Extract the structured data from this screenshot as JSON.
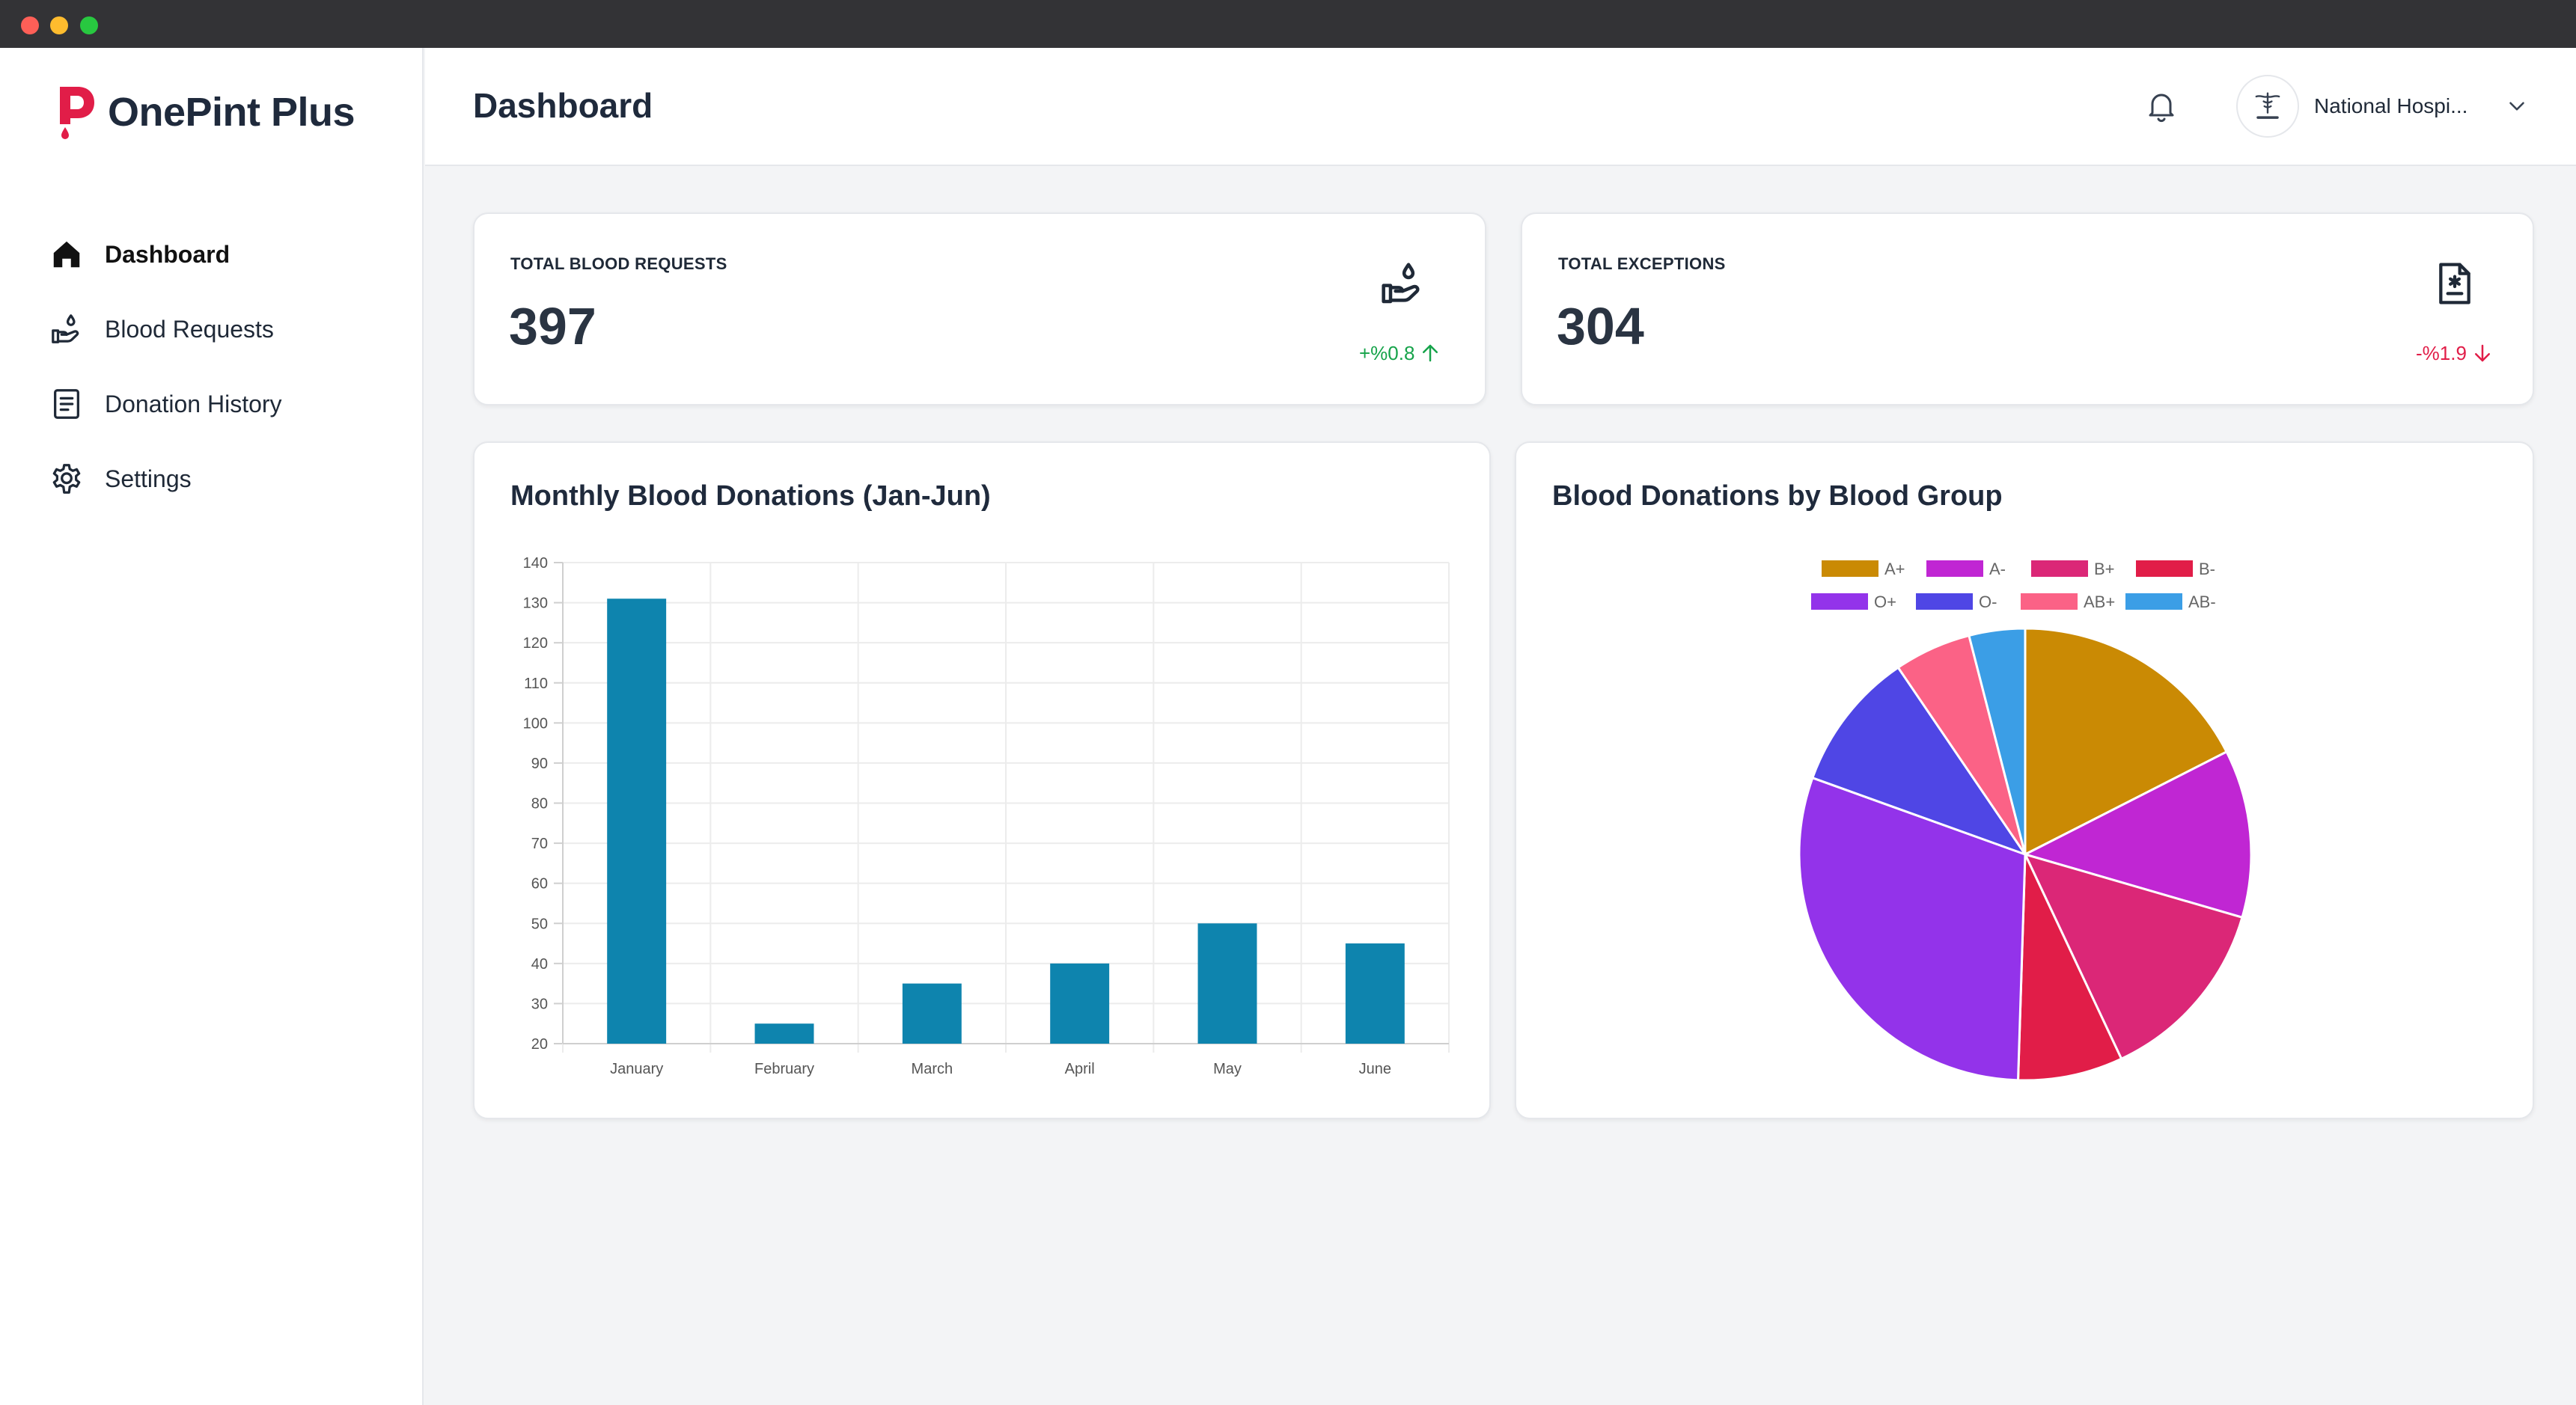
{
  "app": {
    "name": "OnePint Plus",
    "brand_color": "#e11d48",
    "logo_icon": "pint-logo-icon"
  },
  "sidebar": {
    "items": [
      {
        "label": "Dashboard",
        "icon": "home-icon",
        "active": true
      },
      {
        "label": "Blood Requests",
        "icon": "hand-drop-icon",
        "active": false
      },
      {
        "label": "Donation History",
        "icon": "document-list-icon",
        "active": false
      },
      {
        "label": "Settings",
        "icon": "gear-icon",
        "active": false
      }
    ]
  },
  "header": {
    "title": "Dashboard",
    "notification_icon": "bell-icon",
    "account": {
      "name": "National Hospi...",
      "avatar_icon": "hospital-logo-icon",
      "dropdown_icon": "chevron-down-icon"
    }
  },
  "stats": [
    {
      "label": "TOTAL BLOOD REQUESTS",
      "value": "397",
      "trend": "+%0.8",
      "direction": "up",
      "icon": "hand-drop-icon",
      "color": "#16a34a"
    },
    {
      "label": "TOTAL EXCEPTIONS",
      "value": "304",
      "trend": "-%1.9",
      "direction": "down",
      "icon": "document-asterisk-icon",
      "color": "#e11d48"
    }
  ],
  "chart_data": [
    {
      "type": "bar",
      "title": "Monthly Blood Donations (Jan-Jun)",
      "categories": [
        "January",
        "February",
        "March",
        "April",
        "May",
        "June"
      ],
      "values": [
        131,
        25,
        35,
        40,
        50,
        45
      ],
      "ylim": [
        20,
        140
      ],
      "yticks": [
        20,
        30,
        40,
        50,
        60,
        70,
        80,
        90,
        100,
        110,
        120,
        130,
        140
      ],
      "grid": true,
      "bar_color": "#0e84ae",
      "xlabel": "",
      "ylabel": ""
    },
    {
      "type": "pie",
      "title": "Blood Donations by Blood Group",
      "legend_position": "top",
      "labels": [
        "A+",
        "A-",
        "B+",
        "B-",
        "O+",
        "O-",
        "AB+",
        "AB-"
      ],
      "values": [
        17.5,
        12,
        13.5,
        7.5,
        30,
        10,
        5.5,
        4
      ],
      "colors": [
        "#ca8a04",
        "#c026d3",
        "#db2777",
        "#e11d48",
        "#9333ea",
        "#4f46e5",
        "#fb6286",
        "#3b9ee6"
      ]
    }
  ]
}
